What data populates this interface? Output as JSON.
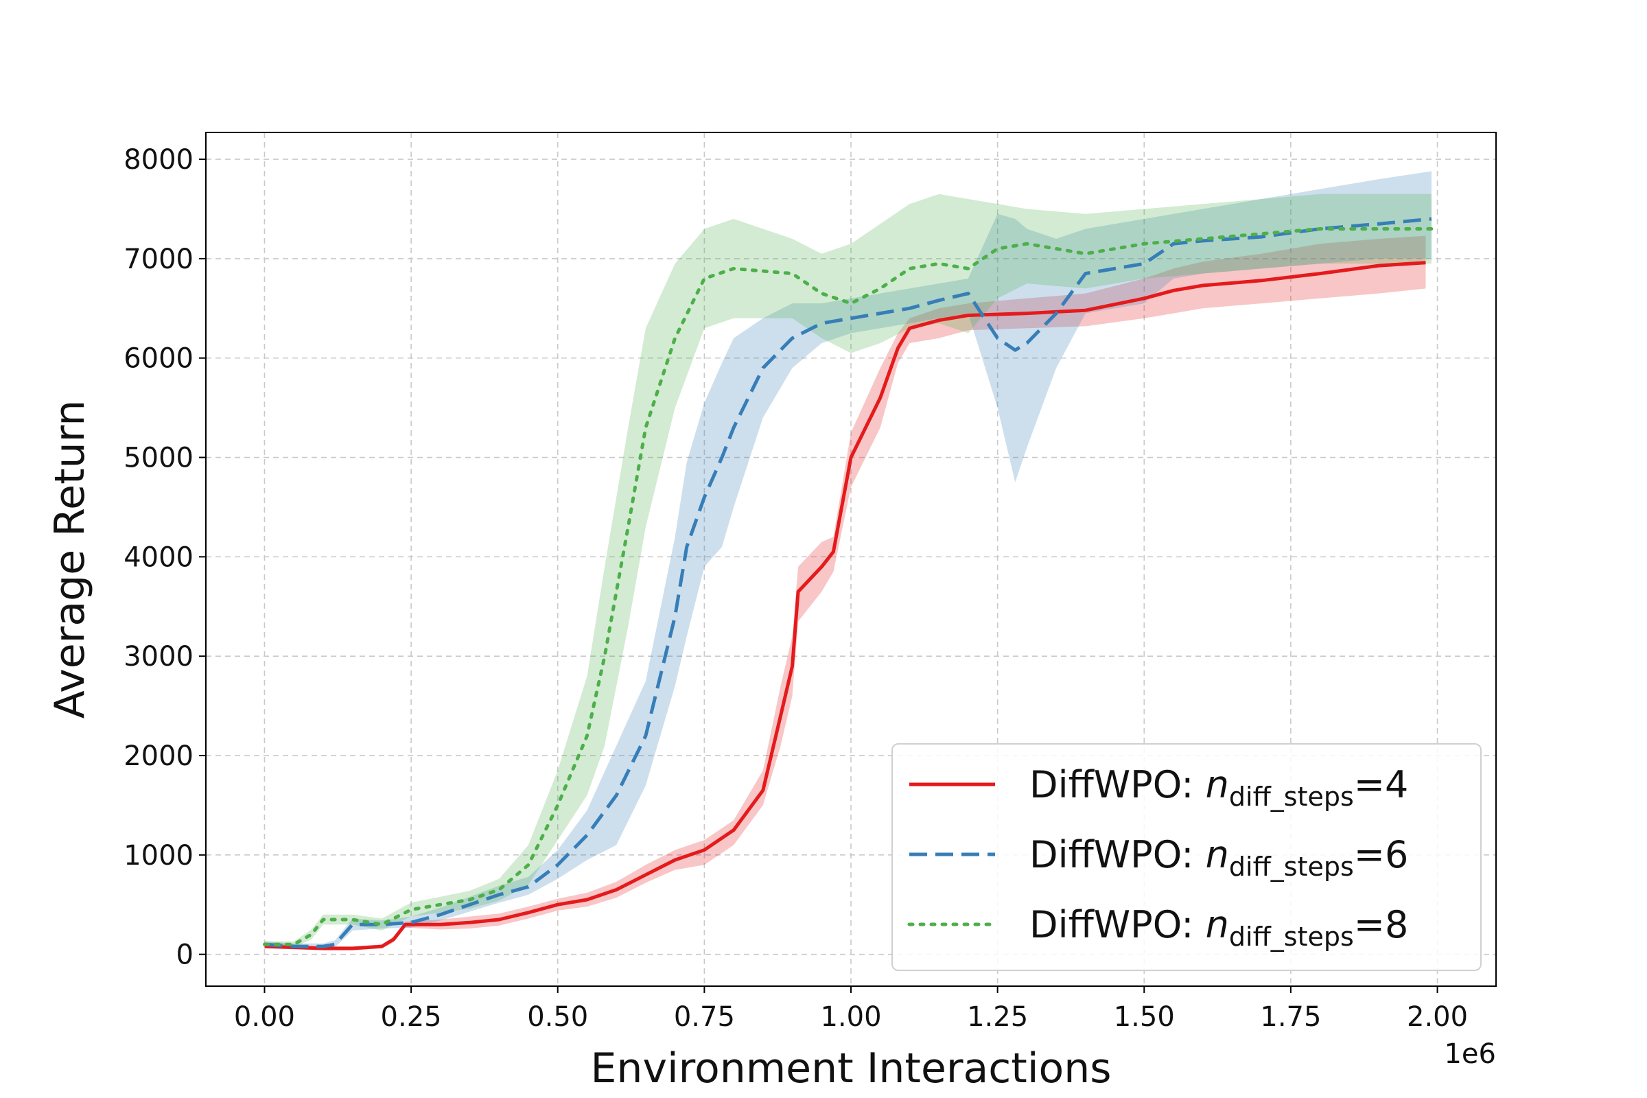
{
  "chart_data": {
    "type": "line",
    "title": "",
    "xlabel": "Environment Interactions",
    "ylabel": "Average Return",
    "x_offset_label": "1e6",
    "xlim": [
      -0.1,
      2.1
    ],
    "ylim": [
      -320,
      8270
    ],
    "grid": true,
    "legend_position": "lower-right",
    "x_ticks": [
      0.0,
      0.25,
      0.5,
      0.75,
      1.0,
      1.25,
      1.5,
      1.75,
      2.0
    ],
    "x_tick_labels": [
      "0.00",
      "0.25",
      "0.50",
      "0.75",
      "1.00",
      "1.25",
      "1.50",
      "1.75",
      "2.00"
    ],
    "y_ticks": [
      0,
      1000,
      2000,
      3000,
      4000,
      5000,
      6000,
      7000,
      8000
    ],
    "y_tick_labels": [
      "0",
      "1000",
      "2000",
      "3000",
      "4000",
      "5000",
      "6000",
      "7000",
      "8000"
    ],
    "series": [
      {
        "name": "DiffWPO: n_diff_steps=4",
        "legend_prefix": "DiffWPO: ",
        "legend_var": "n",
        "legend_sub": "diff_steps",
        "legend_suffix": "=4",
        "color": "#e41a1c",
        "line_style": "solid",
        "x": [
          0.0,
          0.05,
          0.1,
          0.15,
          0.2,
          0.22,
          0.24,
          0.3,
          0.35,
          0.4,
          0.45,
          0.5,
          0.55,
          0.6,
          0.65,
          0.7,
          0.75,
          0.8,
          0.85,
          0.88,
          0.9,
          0.91,
          0.95,
          0.97,
          1.0,
          1.05,
          1.08,
          1.1,
          1.15,
          1.2,
          1.3,
          1.4,
          1.5,
          1.55,
          1.6,
          1.7,
          1.8,
          1.9,
          1.98
        ],
        "values": [
          80,
          70,
          60,
          60,
          80,
          150,
          300,
          300,
          320,
          350,
          420,
          500,
          550,
          650,
          800,
          950,
          1050,
          1250,
          1650,
          2400,
          2900,
          3650,
          3900,
          4050,
          5000,
          5600,
          6100,
          6300,
          6380,
          6430,
          6450,
          6480,
          6600,
          6680,
          6730,
          6780,
          6850,
          6930,
          6960
        ],
        "upper": [
          120,
          100,
          80,
          80,
          100,
          180,
          330,
          350,
          380,
          410,
          480,
          560,
          620,
          730,
          900,
          1050,
          1150,
          1350,
          1850,
          2700,
          3200,
          3900,
          4150,
          4200,
          5250,
          5900,
          6250,
          6400,
          6500,
          6550,
          6600,
          6650,
          6800,
          6900,
          6970,
          7050,
          7150,
          7200,
          7230
        ],
        "lower": [
          60,
          50,
          40,
          40,
          60,
          120,
          270,
          250,
          260,
          290,
          360,
          440,
          480,
          570,
          720,
          850,
          900,
          1100,
          1500,
          2100,
          2600,
          3350,
          3650,
          3850,
          4700,
          5300,
          5950,
          6150,
          6200,
          6280,
          6300,
          6320,
          6400,
          6450,
          6500,
          6550,
          6600,
          6650,
          6700
        ]
      },
      {
        "name": "DiffWPO: n_diff_steps=6",
        "legend_prefix": "DiffWPO: ",
        "legend_var": "n",
        "legend_sub": "diff_steps",
        "legend_suffix": "=6",
        "color": "#377eb8",
        "line_style": "dashed",
        "x": [
          0.0,
          0.05,
          0.1,
          0.12,
          0.15,
          0.2,
          0.25,
          0.3,
          0.35,
          0.4,
          0.45,
          0.5,
          0.55,
          0.6,
          0.65,
          0.7,
          0.72,
          0.75,
          0.78,
          0.8,
          0.85,
          0.9,
          0.95,
          1.0,
          1.05,
          1.1,
          1.15,
          1.2,
          1.25,
          1.28,
          1.3,
          1.35,
          1.4,
          1.45,
          1.5,
          1.55,
          1.6,
          1.7,
          1.8,
          1.9,
          1.99
        ],
        "values": [
          100,
          80,
          80,
          100,
          300,
          300,
          320,
          400,
          500,
          600,
          680,
          900,
          1200,
          1600,
          2200,
          3400,
          4100,
          4600,
          5000,
          5300,
          5900,
          6200,
          6350,
          6400,
          6450,
          6500,
          6580,
          6650,
          6200,
          6080,
          6150,
          6450,
          6850,
          6900,
          6950,
          7150,
          7180,
          7220,
          7300,
          7350,
          7400
        ],
        "upper": [
          130,
          110,
          110,
          140,
          360,
          340,
          380,
          470,
          580,
          690,
          780,
          1050,
          1450,
          2100,
          2750,
          4200,
          4950,
          5550,
          5950,
          6200,
          6400,
          6550,
          6550,
          6600,
          6650,
          6700,
          6750,
          6800,
          7450,
          7400,
          7300,
          7200,
          7300,
          7350,
          7400,
          7450,
          7500,
          7600,
          7700,
          7800,
          7880
        ],
        "lower": [
          70,
          50,
          50,
          70,
          240,
          260,
          270,
          340,
          430,
          520,
          600,
          760,
          950,
          1100,
          1700,
          2700,
          3200,
          3900,
          4100,
          4500,
          5400,
          5900,
          6150,
          6250,
          6300,
          6350,
          6400,
          6450,
          5500,
          4750,
          5100,
          5900,
          6450,
          6500,
          6550,
          6800,
          6850,
          6900,
          6950,
          7000,
          7000
        ]
      },
      {
        "name": "DiffWPO: n_diff_steps=8",
        "legend_prefix": "DiffWPO: ",
        "legend_var": "n",
        "legend_sub": "diff_steps",
        "legend_suffix": "=8",
        "color": "#4daf4a",
        "line_style": "dotted",
        "x": [
          0.0,
          0.05,
          0.08,
          0.1,
          0.15,
          0.2,
          0.25,
          0.3,
          0.35,
          0.4,
          0.45,
          0.5,
          0.55,
          0.58,
          0.62,
          0.65,
          0.7,
          0.75,
          0.8,
          0.9,
          0.95,
          1.0,
          1.05,
          1.1,
          1.15,
          1.2,
          1.25,
          1.3,
          1.4,
          1.5,
          1.6,
          1.7,
          1.8,
          1.9,
          1.99
        ],
        "values": [
          100,
          100,
          200,
          350,
          350,
          300,
          450,
          500,
          550,
          650,
          900,
          1500,
          2200,
          3000,
          4300,
          5300,
          6200,
          6800,
          6900,
          6850,
          6650,
          6550,
          6700,
          6900,
          6950,
          6900,
          7100,
          7150,
          7050,
          7150,
          7200,
          7250,
          7300,
          7300,
          7300
        ],
        "upper": [
          130,
          130,
          250,
          400,
          400,
          360,
          520,
          580,
          640,
          760,
          1100,
          1850,
          2800,
          3900,
          5300,
          6300,
          6950,
          7300,
          7400,
          7200,
          7050,
          7150,
          7350,
          7550,
          7650,
          7600,
          7550,
          7500,
          7450,
          7500,
          7550,
          7600,
          7650,
          7650,
          7650
        ],
        "lower": [
          70,
          70,
          150,
          300,
          300,
          240,
          380,
          420,
          460,
          540,
          700,
          1150,
          1600,
          2100,
          3300,
          4300,
          5500,
          6300,
          6400,
          6400,
          6200,
          6050,
          6150,
          6300,
          6350,
          6250,
          6600,
          6750,
          6700,
          6800,
          6850,
          6900,
          6950,
          6950,
          6950
        ]
      }
    ]
  }
}
